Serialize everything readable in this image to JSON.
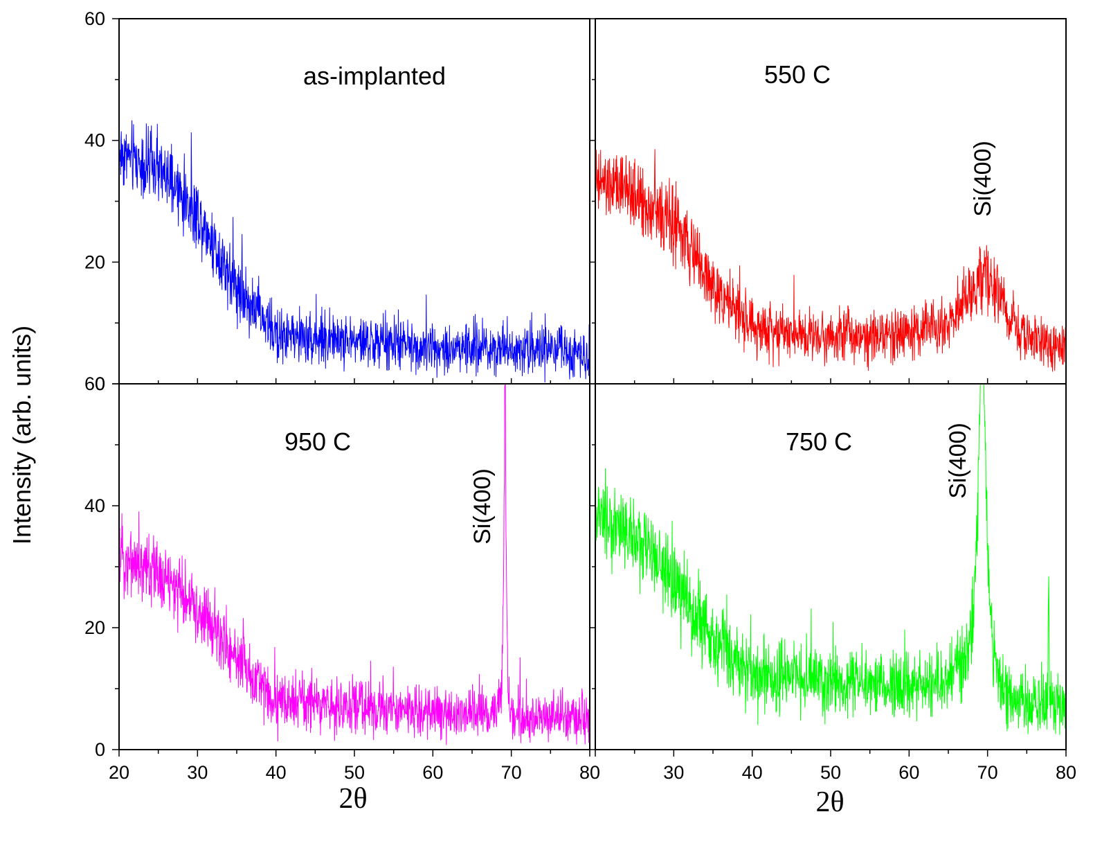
{
  "chart_data": {
    "type": "line",
    "ylabel": "Intensity (arb. units)",
    "xlabel": "2θ",
    "xlim": [
      20,
      80
    ],
    "ylim": [
      0,
      60
    ],
    "x_tick_labels": [
      "20",
      "30",
      "40",
      "50",
      "60",
      "70",
      "80"
    ],
    "x_tick_labels_right": [
      "30",
      "40",
      "50",
      "60",
      "70",
      "80"
    ],
    "y_tick_labels": [
      "0",
      "20",
      "40",
      "60"
    ],
    "panels": [
      {
        "id": "as-implanted",
        "title": "as-implanted",
        "color": "#0000ff",
        "xlim": [
          20,
          80
        ],
        "ylim": [
          0,
          60
        ],
        "background": {
          "x": [
            20,
            25,
            30,
            35,
            40,
            50,
            60,
            70,
            80
          ],
          "y": [
            38,
            35,
            28,
            16,
            8,
            7,
            6,
            6,
            5
          ]
        },
        "noise_amplitude": 6,
        "peaks": []
      },
      {
        "id": "550C",
        "title": "550 C",
        "color": "#ff0000",
        "xlim": [
          20,
          80
        ],
        "ylim": [
          0,
          60
        ],
        "background": {
          "x": [
            20,
            25,
            30,
            35,
            40,
            50,
            60,
            65,
            70,
            75,
            80
          ],
          "y": [
            33,
            31,
            26,
            16,
            9,
            8,
            8,
            9,
            10,
            7,
            5
          ]
        },
        "noise_amplitude": 6,
        "peaks": [
          {
            "label": "Si(400)",
            "center": 69.5,
            "height": 8,
            "width": 2.2
          }
        ]
      },
      {
        "id": "950C",
        "title": "950 C",
        "color": "#ff00ff",
        "xlim": [
          20,
          80
        ],
        "ylim": [
          0,
          60
        ],
        "background": {
          "x": [
            20,
            25,
            30,
            35,
            40,
            50,
            60,
            68,
            70,
            80
          ],
          "y": [
            32,
            29,
            23,
            15,
            8,
            7,
            6,
            6,
            5,
            5
          ]
        },
        "noise_amplitude": 6,
        "peaks": [
          {
            "label": "Si(400)",
            "center": 69.2,
            "height": 55,
            "width": 0.15
          }
        ]
      },
      {
        "id": "750C",
        "title": "750 C",
        "color": "#00ff00",
        "xlim": [
          20,
          80
        ],
        "ylim": [
          0,
          60
        ],
        "background": {
          "x": [
            20,
            25,
            30,
            35,
            40,
            50,
            60,
            67,
            72,
            80
          ],
          "y": [
            38,
            35,
            27,
            18,
            12,
            11,
            10,
            11,
            7,
            7
          ]
        },
        "noise_amplitude": 7,
        "peaks": [
          {
            "label": "Si(400)",
            "center": 69.3,
            "height": 58,
            "width": 0.6
          },
          {
            "label": "",
            "center": 77.8,
            "height": 22,
            "width": 0.05
          }
        ]
      }
    ]
  }
}
